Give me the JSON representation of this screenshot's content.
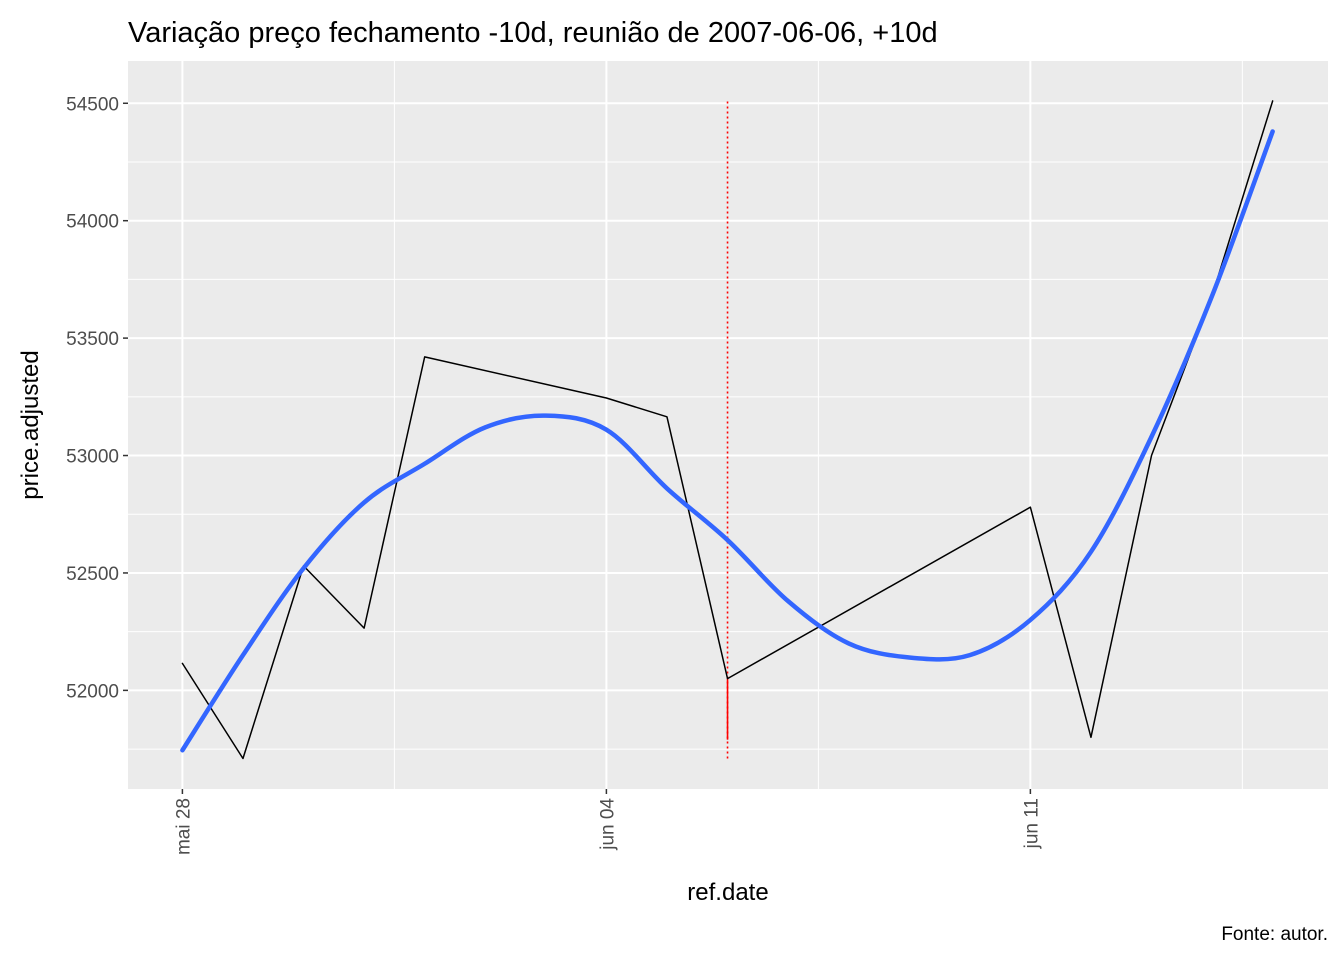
{
  "chart_data": {
    "type": "line",
    "title": "Variação preço fechamento -10d, reunião de 2007-06-06, +10d",
    "xlabel": "ref.date",
    "ylabel": "price.adjusted",
    "caption": "Fonte: autor.",
    "x_ticks": [
      {
        "date": "2007-05-28",
        "label": "mai 28"
      },
      {
        "date": "2007-06-04",
        "label": "jun 04"
      },
      {
        "date": "2007-06-11",
        "label": "jun 11"
      }
    ],
    "y_ticks": [
      52000,
      52500,
      53000,
      53500,
      54000,
      54500
    ],
    "xlim": [
      "2007-05-27",
      "2007-06-15"
    ],
    "ylim": [
      51580,
      54680
    ],
    "grid": true,
    "series": [
      {
        "color": "#000000",
        "points": [
          {
            "x": "2007-05-28",
            "y": 52115
          },
          {
            "x": "2007-05-29",
            "y": 51710
          },
          {
            "x": "2007-05-30",
            "y": 52530
          },
          {
            "x": "2007-05-31",
            "y": 52265
          },
          {
            "x": "2007-06-01",
            "y": 53420
          },
          {
            "x": "2007-06-04",
            "y": 53245
          },
          {
            "x": "2007-06-05",
            "y": 53165
          },
          {
            "x": "2007-06-06",
            "y": 52050
          },
          {
            "x": "2007-06-11",
            "y": 52780
          },
          {
            "x": "2007-06-12",
            "y": 51800
          },
          {
            "x": "2007-06-13",
            "y": 53000
          },
          {
            "x": "2007-06-14",
            "y": 53680
          },
          {
            "x": "2007-06-15",
            "y": 54510
          }
        ]
      },
      {
        "color": "#3366FF",
        "smooth": true,
        "points": [
          {
            "x": "2007-05-28",
            "y": 51745
          },
          {
            "x": "2007-05-29",
            "y": 52150
          },
          {
            "x": "2007-05-30",
            "y": 52520
          },
          {
            "x": "2007-05-31",
            "y": 52800
          },
          {
            "x": "2007-06-01",
            "y": 52965
          },
          {
            "x": "2007-06-02",
            "y": 53120
          },
          {
            "x": "2007-06-03",
            "y": 53170
          },
          {
            "x": "2007-06-04",
            "y": 53110
          },
          {
            "x": "2007-06-05",
            "y": 52860
          },
          {
            "x": "2007-06-06",
            "y": 52640
          },
          {
            "x": "2007-06-07",
            "y": 52380
          },
          {
            "x": "2007-06-08",
            "y": 52200
          },
          {
            "x": "2007-06-09",
            "y": 52140
          },
          {
            "x": "2007-06-10",
            "y": 52150
          },
          {
            "x": "2007-06-11",
            "y": 52300
          },
          {
            "x": "2007-06-12",
            "y": 52590
          },
          {
            "x": "2007-06-13",
            "y": 53080
          },
          {
            "x": "2007-06-14",
            "y": 53680
          },
          {
            "x": "2007-06-15",
            "y": 54380
          }
        ]
      }
    ],
    "vline": {
      "x": "2007-06-06",
      "color": "#ff0000",
      "segments": [
        {
          "style": "dotted",
          "y_from": 51710,
          "y_to": 54510
        },
        {
          "style": "solid",
          "y_from": 51790,
          "y_to": 52050
        }
      ]
    }
  }
}
